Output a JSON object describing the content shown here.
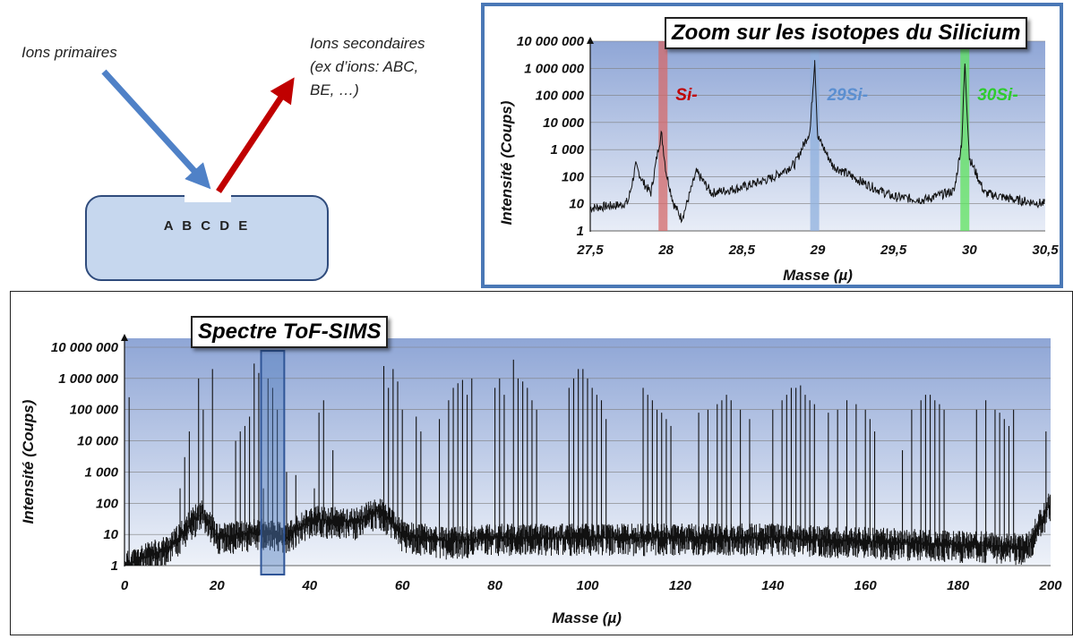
{
  "diagram": {
    "primary_ions": "Ions primaires",
    "secondary_ions_line1": "Ions secondaires",
    "secondary_ions_line2": "(ex d’ions: ABC,",
    "secondary_ions_line3": "BE, …)",
    "sample_atoms": "A B C D E",
    "colors": {
      "primary_arrow": "#4f81c7",
      "secondary_arrow": "#c00000",
      "sample_fill": "#c6d7ee",
      "sample_border": "#2f4b7c"
    }
  },
  "zoom": {
    "title": "Zoom sur les isotopes du Silicium",
    "ylabel": "Intensité (Coups)",
    "xlabel": "Masse (µ)",
    "y_ticks": [
      "1",
      "10",
      "100",
      "1 000",
      "10 000",
      "100 000",
      "1 000 000",
      "10 000 000"
    ],
    "x_ticks": [
      "27,5",
      "28",
      "28,5",
      "29",
      "29,5",
      "30",
      "30,5"
    ],
    "annotations": [
      {
        "label": "Si-",
        "color": "#c00000",
        "band_color": "#d46a6a",
        "x": 27.98
      },
      {
        "label": "29Si-",
        "color": "#5b8fd1",
        "band_color": "#8fb0de",
        "x": 28.98
      },
      {
        "label": "30Si-",
        "color": "#2ecc2e",
        "band_color": "#5ee35e",
        "x": 29.97
      }
    ]
  },
  "main": {
    "title": "Spectre ToF-SIMS",
    "ylabel": "Intensité (Coups)",
    "xlabel": "Masse (µ)",
    "y_ticks": [
      "1",
      "10",
      "100",
      "1 000",
      "10 000",
      "100 000",
      "1 000 000",
      "10 000 000"
    ],
    "x_ticks": [
      "0",
      "20",
      "40",
      "60",
      "80",
      "100",
      "120",
      "140",
      "160",
      "180",
      "200"
    ],
    "highlight": {
      "xmin": 29.5,
      "xmax": 34.5
    }
  },
  "chart_data": [
    {
      "type": "line",
      "title": "Zoom sur les isotopes du Silicium",
      "xlabel": "Masse (µ)",
      "ylabel": "Intensité (Coups)",
      "yscale": "log",
      "xlim": [
        27.5,
        30.5
      ],
      "ylim": [
        1,
        10000000
      ],
      "grid": true,
      "x": [
        27.5,
        27.6,
        27.7,
        27.75,
        27.8,
        27.85,
        27.9,
        27.95,
        27.97,
        28.0,
        28.05,
        28.1,
        28.12,
        28.2,
        28.3,
        28.5,
        28.7,
        28.85,
        28.95,
        28.98,
        29.0,
        29.1,
        29.3,
        29.5,
        29.7,
        29.9,
        29.95,
        29.97,
        30.0,
        30.1,
        30.3,
        30.5
      ],
      "y": [
        7,
        8,
        9,
        12,
        250,
        60,
        25,
        1200,
        4000,
        150,
        10,
        3,
        5,
        150,
        25,
        40,
        90,
        300,
        5000,
        2000000,
        3000,
        250,
        60,
        18,
        14,
        30,
        2000,
        1500000,
        500,
        25,
        14,
        10
      ]
    },
    {
      "type": "line",
      "title": "Spectre ToF-SIMS",
      "xlabel": "Masse (µ)",
      "ylabel": "Intensité (Coups)",
      "yscale": "log",
      "xlim": [
        0,
        200
      ],
      "ylim": [
        1,
        10000000
      ],
      "grid": true,
      "peaks_x": [
        1,
        12,
        13,
        14,
        16,
        17,
        19,
        24,
        25,
        26,
        27,
        28,
        29,
        30,
        31,
        32,
        33,
        35,
        37,
        41,
        42,
        43,
        45,
        56,
        57,
        58,
        59,
        60,
        63,
        64,
        68,
        70,
        71,
        72,
        73,
        74,
        75,
        80,
        81,
        82,
        84,
        85,
        86,
        87,
        88,
        89,
        96,
        97,
        98,
        99,
        100,
        101,
        102,
        103,
        104,
        112,
        113,
        114,
        115,
        116,
        117,
        118,
        124,
        126,
        128,
        129,
        130,
        131,
        133,
        135,
        140,
        142,
        143,
        144,
        145,
        146,
        147,
        148,
        149,
        152,
        154,
        156,
        158,
        160,
        161,
        162,
        168,
        170,
        172,
        173,
        174,
        175,
        176,
        177,
        184,
        186,
        188,
        189,
        190,
        191,
        192,
        199
      ],
      "peaks_y": [
        250000,
        300,
        3000,
        20000,
        1000000,
        100000,
        2000000,
        10000,
        20000,
        30000,
        60000,
        3000000,
        1500000,
        300,
        1000000,
        500000,
        100000,
        1000,
        800,
        300,
        80000,
        200000,
        5000,
        2500000,
        500000,
        2000000,
        800000,
        100000,
        60000,
        20000,
        50000,
        200000,
        500000,
        700000,
        900000,
        300000,
        1000000,
        500000,
        1000000,
        300000,
        4000000,
        1000000,
        800000,
        500000,
        200000,
        100000,
        500000,
        1000000,
        2000000,
        2000000,
        1000000,
        500000,
        300000,
        200000,
        50000,
        500000,
        300000,
        200000,
        100000,
        80000,
        50000,
        30000,
        80000,
        100000,
        150000,
        200000,
        300000,
        200000,
        100000,
        50000,
        100000,
        200000,
        300000,
        500000,
        500000,
        600000,
        300000,
        200000,
        150000,
        80000,
        100000,
        200000,
        150000,
        100000,
        50000,
        20000,
        5000,
        100000,
        200000,
        300000,
        300000,
        200000,
        150000,
        100000,
        100000,
        200000,
        100000,
        80000,
        50000,
        30000,
        100000,
        20000,
        60000
      ],
      "baseline_x": [
        0,
        10,
        15,
        17,
        20,
        25,
        30,
        35,
        40,
        50,
        55,
        60,
        70,
        80,
        100,
        140,
        195,
        200
      ],
      "baseline_y": [
        1,
        4,
        30,
        50,
        8,
        10,
        12,
        8,
        30,
        25,
        60,
        10,
        6,
        8,
        8,
        8,
        4,
        100
      ]
    }
  ]
}
